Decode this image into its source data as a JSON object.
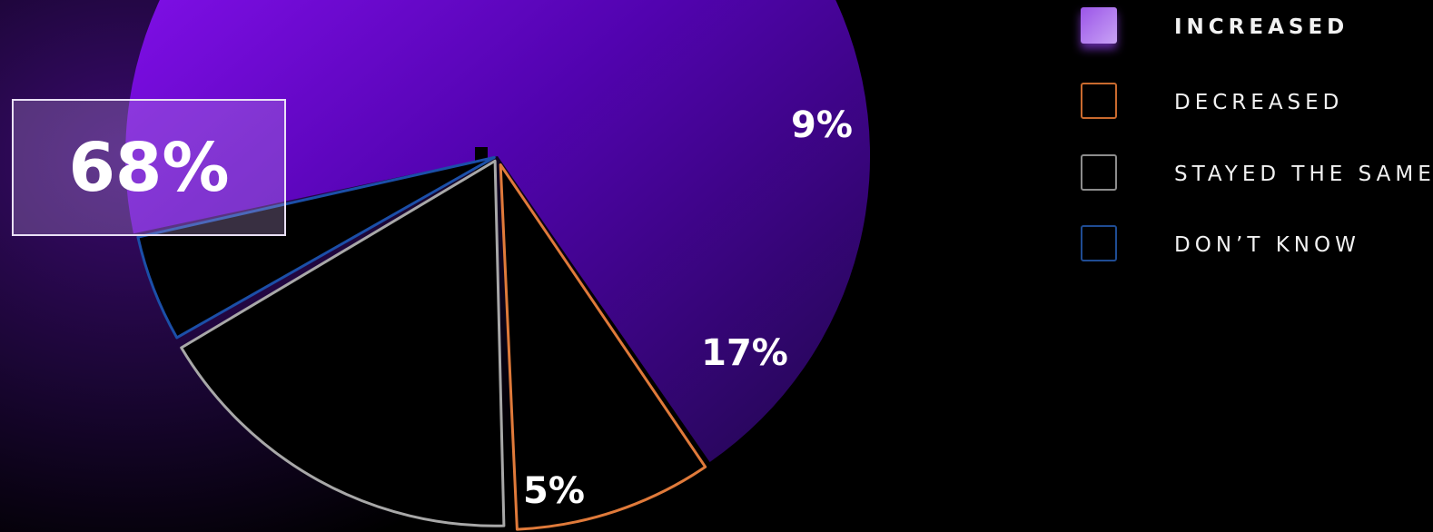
{
  "chart_data": {
    "type": "pie",
    "slices": [
      {
        "name": "INCREASED",
        "value": 68,
        "label": "68%",
        "color": "#7a10e0",
        "style": "filled"
      },
      {
        "name": "DECREASED",
        "value": 9,
        "label": "9%",
        "color": "#e07a3a",
        "style": "outline"
      },
      {
        "name": "STAYED THE SAME",
        "value": 17,
        "label": "17%",
        "color": "#a8a8a8",
        "style": "outline"
      },
      {
        "name": "DON’T KNOW",
        "value": 5,
        "label": "5%",
        "color": "#1b4fa8",
        "style": "outline"
      }
    ],
    "legend_position": "top-right"
  },
  "legend": {
    "items": [
      {
        "label": "INCREASED",
        "icon": "filled-purple-square"
      },
      {
        "label": "DECREASED",
        "icon": "orange-outline-square"
      },
      {
        "label": "STAYED THE SAME",
        "icon": "gray-outline-square"
      },
      {
        "label": "DON’T KNOW",
        "icon": "blue-outline-square"
      }
    ]
  }
}
